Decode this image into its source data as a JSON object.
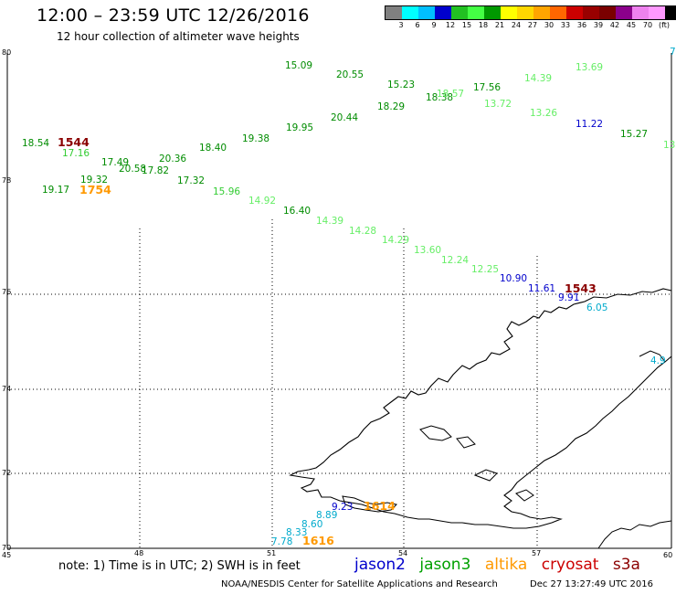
{
  "header": {
    "title": "12:00 – 23:59 UTC 12/26/2016",
    "subtitle": "12 hour collection of altimeter wave heights"
  },
  "colorbar": {
    "unit": "(ft)",
    "swatches": [
      "#808080",
      "#00ffff",
      "#00bfff",
      "#0000cd",
      "#22c022",
      "#44ff44",
      "#009900",
      "#ffff00",
      "#ffd700",
      "#ffa500",
      "#ff6600",
      "#cc0000",
      "#990000",
      "#7a0000",
      "#8b008b",
      "#ee82ee",
      "#ff99ff",
      "#000000"
    ],
    "labels": [
      "3",
      "6",
      "9",
      "12",
      "15",
      "18",
      "21",
      "24",
      "27",
      "30",
      "33",
      "36",
      "39",
      "42",
      "45",
      "70"
    ]
  },
  "axes": {
    "lon_labels": [
      "45",
      "48",
      "51",
      "54",
      "57",
      "60"
    ],
    "lat_labels": [
      "80",
      "78",
      "76",
      "74",
      "72",
      "70"
    ]
  },
  "colors": {
    "jason2": "#0000cc",
    "jason3": "#008c00",
    "jason3_light": "#33cc33",
    "jason3_pale": "#66ee66",
    "altika": "#ff9900",
    "cryosat": "#cc0000",
    "s3a": "#8b0000",
    "cyan": "#00aacc"
  },
  "tracks": [
    {
      "text": "15.09",
      "color": "#008c00"
    },
    {
      "text": "20.55",
      "color": "#008c00"
    },
    {
      "text": "15.23",
      "color": "#008c00"
    },
    {
      "text": "18.38",
      "color": "#008c00"
    },
    {
      "text": "18.57",
      "color": "#66ee66"
    },
    {
      "text": "17.56",
      "color": "#008c00"
    },
    {
      "text": "14.39",
      "color": "#66ee66"
    },
    {
      "text": "13.69",
      "color": "#66ee66"
    },
    {
      "text": "13.72",
      "color": "#66ee66"
    },
    {
      "text": "13.26",
      "color": "#66ee66"
    },
    {
      "text": "11.22",
      "color": "#0000cc"
    },
    {
      "text": "15.27",
      "color": "#008c00"
    },
    {
      "text": "13",
      "color": "#66ee66"
    },
    {
      "text": "20.44",
      "color": "#008c00"
    },
    {
      "text": "18.29",
      "color": "#008c00"
    },
    {
      "text": "19.95",
      "color": "#008c00"
    },
    {
      "text": "19.38",
      "color": "#008c00"
    },
    {
      "text": "18.40",
      "color": "#008c00"
    },
    {
      "text": "20.36",
      "color": "#008c00"
    },
    {
      "text": "17.82",
      "color": "#008c00"
    },
    {
      "text": "20.58",
      "color": "#008c00"
    },
    {
      "text": "17.49",
      "color": "#008c00"
    },
    {
      "text": "17.16",
      "color": "#33cc33"
    },
    {
      "text": "18.54",
      "color": "#008c00"
    },
    {
      "text": "19.32",
      "color": "#008c00"
    },
    {
      "text": "19.17",
      "color": "#008c00"
    },
    {
      "text": "17.32",
      "color": "#008c00"
    },
    {
      "text": "15.96",
      "color": "#33cc33"
    },
    {
      "text": "14.92",
      "color": "#66ee66"
    },
    {
      "text": "16.40",
      "color": "#008c00"
    },
    {
      "text": "14.39",
      "color": "#66ee66"
    },
    {
      "text": "14.28",
      "color": "#66ee66"
    },
    {
      "text": "14.29",
      "color": "#66ee66"
    },
    {
      "text": "13.60",
      "color": "#66ee66"
    },
    {
      "text": "12.24",
      "color": "#66ee66"
    },
    {
      "text": "12.25",
      "color": "#66ee66"
    },
    {
      "text": "10.90",
      "color": "#0000cc"
    },
    {
      "text": "11.61",
      "color": "#0000cc"
    },
    {
      "text": "9.91",
      "color": "#0000cc"
    },
    {
      "text": "6.05",
      "color": "#00aacc"
    },
    {
      "text": "7",
      "color": "#00aacc"
    },
    {
      "text": "4.9",
      "color": "#00aacc"
    },
    {
      "text": "9.23",
      "color": "#0000cc"
    },
    {
      "text": "8.89",
      "color": "#00aacc"
    },
    {
      "text": "8.60",
      "color": "#00aacc"
    },
    {
      "text": "8.33",
      "color": "#00aacc"
    },
    {
      "text": "7.78",
      "color": "#00aacc"
    }
  ],
  "pass_times": [
    {
      "text": "1544",
      "color": "#8b0000"
    },
    {
      "text": "1754",
      "color": "#ff9900"
    },
    {
      "text": "1543",
      "color": "#8b0000"
    },
    {
      "text": "1616",
      "color": "#ff9900"
    },
    {
      "text": "1614",
      "color": "#ff9900"
    }
  ],
  "note": "note: 1) Time is in UTC; 2) SWH is in feet",
  "legend": {
    "jason2": "jason2",
    "jason3": "jason3",
    "altika": "altika",
    "cryosat": "cryosat",
    "s3a": "s3a"
  },
  "footer": {
    "credit": "NOAA/NESDIS Center for Satellite Applications and Research",
    "timestamp": "Dec 27 13:27:49 UTC 2016"
  }
}
